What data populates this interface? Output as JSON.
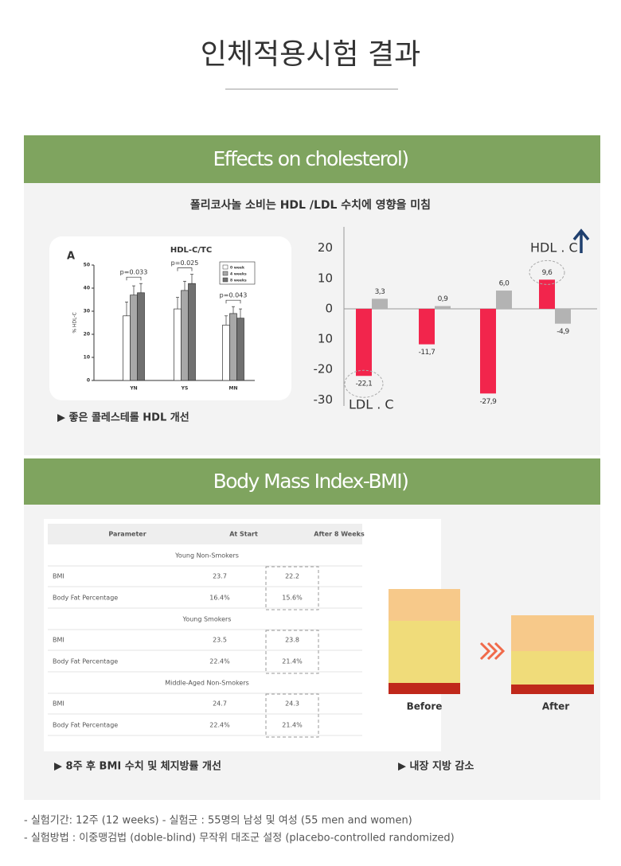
{
  "title": "인체적용시험 결과",
  "cholesterol": {
    "heading": "Effects on cholesterol)",
    "subtitle": "폴리코사놀 소비는 HDL /LDL 수치에 영향을 미침",
    "caption": "▶ 좋은 콜레스테롤 HDL 개선",
    "chart_data": [
      {
        "type": "bar",
        "panel": "A",
        "title": "HDL-C/TC",
        "y_label": "% HDL-C",
        "categories": [
          "YN",
          "YS",
          "MN"
        ],
        "series": [
          {
            "name": "0 week",
            "color": "#ffffff",
            "values": [
              28,
              31,
              24
            ],
            "errors": [
              6,
              5,
              4
            ]
          },
          {
            "name": "4 weeks",
            "color": "#a8a8a8",
            "values": [
              37,
              39,
              29
            ],
            "errors": [
              4,
              4,
              3
            ]
          },
          {
            "name": "8 weeks",
            "color": "#707070",
            "values": [
              38,
              42,
              27
            ],
            "errors": [
              4,
              4,
              4
            ]
          }
        ],
        "annotations": [
          "p=0.033",
          "p=0.025",
          "p=0.043"
        ],
        "ylim": [
          0,
          50
        ],
        "yticks": [
          0,
          10,
          20,
          30,
          40,
          50
        ]
      },
      {
        "type": "bar",
        "series": [
          {
            "color": "#f2254c",
            "values": [
              -22.1,
              -11.7,
              -27.9,
              9.6
            ],
            "value_labels": [
              "-22,1",
              "-11,7",
              "-27,9",
              "9,6"
            ]
          },
          {
            "color": "#b3b3b3",
            "values": [
              3.3,
              0.9,
              6.0,
              -4.9
            ],
            "value_labels": [
              "3,3",
              "0,9",
              "6,0",
              "-4,9"
            ]
          }
        ],
        "annotations": [
          "HDL . C",
          "LDL . C"
        ],
        "ylim": [
          -32,
          27
        ],
        "yticks": [
          20,
          10,
          0,
          {
            "value": -10,
            "label": "10"
          },
          -20,
          -30
        ]
      }
    ]
  },
  "bmi": {
    "heading": "Body Mass Index-BMI)",
    "table": {
      "columns": [
        "Parameter",
        "At Start",
        "After 8 Weeks"
      ],
      "groups": [
        {
          "name": "Young Non-Smokers",
          "rows": [
            [
              "BMI",
              "23.7",
              "22.2"
            ],
            [
              "Body Fat Percentage",
              "16.4%",
              "15.6%"
            ]
          ]
        },
        {
          "name": "Young Smokers",
          "rows": [
            [
              "BMI",
              "23.5",
              "23.8"
            ],
            [
              "Body Fat Percentage",
              "22.4%",
              "21.4%"
            ]
          ]
        },
        {
          "name": "Middle-Aged Non-Smokers",
          "rows": [
            [
              "BMI",
              "24.7",
              "24.3"
            ],
            [
              "Body Fat Percentage",
              "22.4%",
              "21.4%"
            ]
          ]
        }
      ]
    },
    "caption_table": "▶ 8주 후 BMI 수치 및 체지방률 개선",
    "image_labels": [
      "Before",
      "After"
    ],
    "caption_image": "▶ 내장 지방 감소"
  },
  "footer": [
    "- 실험기간: 12주 (12 weeks) - 실험군 : 55명의 남성 및 여성 (55 men and women)",
    "- 실험방법 : 이중맹검법 (doble-blind) 무작위 대조군 설정 (placebo-controlled randomized)"
  ]
}
